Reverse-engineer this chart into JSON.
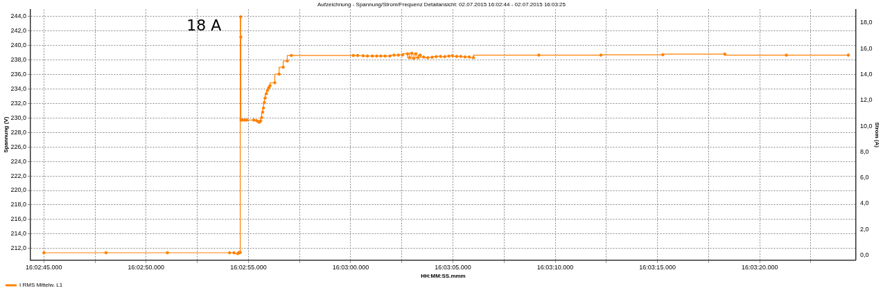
{
  "chart_data": {
    "type": "step",
    "title": "Aufzeichnung - Spannung/Strom/Frequenz Detailansicht: 02.07.2015 16:02:44 - 02.07.2015 16:03:25",
    "xlabel": "HH:MM:SS.mmm",
    "ylabel": "Spannung (V)",
    "y2label": "Strom (A)",
    "x": [
      "2015-07-02T16:02:45.00",
      "2015-07-02T16:02:48.04",
      "2015-07-02T16:02:51.04",
      "2015-07-02T16:02:54.08",
      "2015-07-02T16:02:54.29",
      "2015-07-02T16:02:54.48",
      "2015-07-02T16:02:54.54",
      "2015-07-02T16:02:54.60",
      "2015-07-02T16:02:54.62",
      "2015-07-02T16:02:54.63",
      "2015-07-02T16:02:54.64",
      "2015-07-02T16:02:54.71",
      "2015-07-02T16:02:54.81",
      "2015-07-02T16:02:54.92",
      "2015-07-02T16:02:55.26",
      "2015-07-02T16:02:55.40",
      "2015-07-02T16:02:55.49",
      "2015-07-02T16:02:55.54",
      "2015-07-02T16:02:55.60",
      "2015-07-02T16:02:55.65",
      "2015-07-02T16:02:55.70",
      "2015-07-02T16:02:55.74",
      "2015-07-02T16:02:55.78",
      "2015-07-02T16:02:55.82",
      "2015-07-02T16:02:55.88",
      "2015-07-02T16:02:55.94",
      "2015-07-02T16:02:56.00",
      "2015-07-02T16:02:56.06",
      "2015-07-02T16:02:56.29",
      "2015-07-02T16:02:56.50",
      "2015-07-02T16:02:56.70",
      "2015-07-02T16:02:56.90",
      "2015-07-02T16:02:57.10",
      "2015-07-02T16:03:00.13",
      "2015-07-02T16:03:00.34",
      "2015-07-02T16:03:00.61",
      "2015-07-02T16:03:00.82",
      "2015-07-02T16:03:01.06",
      "2015-07-02T16:03:01.27",
      "2015-07-02T16:03:01.47",
      "2015-07-02T16:03:01.68",
      "2015-07-02T16:03:01.92",
      "2015-07-02T16:03:02.12",
      "2015-07-02T16:03:02.33",
      "2015-07-02T16:03:02.54",
      "2015-07-02T16:03:02.78",
      "2015-07-02T16:03:02.88",
      "2015-07-02T16:03:02.99",
      "2015-07-02T16:03:03.09",
      "2015-07-02T16:03:03.19",
      "2015-07-02T16:03:03.30",
      "2015-07-02T16:03:03.40",
      "2015-07-02T16:03:03.57",
      "2015-07-02T16:03:03.77",
      "2015-07-02T16:03:03.98",
      "2015-07-02T16:03:04.18",
      "2015-07-02T16:03:04.39",
      "2015-07-02T16:03:04.60",
      "2015-07-02T16:03:04.80",
      "2015-07-02T16:03:04.97",
      "2015-07-02T16:03:05.18",
      "2015-07-02T16:03:05.38",
      "2015-07-02T16:03:05.59",
      "2015-07-02T16:03:05.80",
      "2015-07-02T16:03:06.00",
      "2015-07-02T16:03:09.20",
      "2015-07-02T16:03:12.23",
      "2015-07-02T16:03:15.26",
      "2015-07-02T16:03:18.29",
      "2015-07-02T16:03:21.30",
      "2015-07-02T16:03:24.33"
    ],
    "series": [
      {
        "name": "I RMS Mittelw. L1",
        "color": "#ff8000",
        "axis": "y2",
        "values": [
          0.19,
          0.19,
          0.19,
          0.19,
          0.19,
          0.12,
          0.21,
          0.21,
          18.46,
          16.9,
          10.47,
          10.47,
          10.47,
          10.47,
          10.47,
          10.43,
          10.34,
          10.3,
          10.4,
          10.66,
          11.08,
          11.4,
          11.82,
          12.18,
          12.51,
          12.77,
          12.98,
          13.13,
          13.36,
          14.03,
          14.56,
          15.05,
          15.47,
          15.47,
          15.47,
          15.45,
          15.43,
          15.43,
          15.43,
          15.43,
          15.43,
          15.43,
          15.5,
          15.5,
          15.52,
          15.6,
          15.3,
          15.65,
          15.25,
          15.6,
          15.3,
          15.5,
          15.35,
          15.3,
          15.33,
          15.38,
          15.4,
          15.38,
          15.42,
          15.45,
          15.4,
          15.4,
          15.36,
          15.36,
          15.3,
          15.5,
          15.5,
          15.53,
          15.58,
          15.5,
          15.5
        ]
      }
    ],
    "xlim": [
      "2015-07-02T16:02:44.35",
      "2015-07-02T16:03:24.70"
    ],
    "xticks": [
      {
        "value": "2015-07-02T16:02:45",
        "label": "16:02:45.000"
      },
      {
        "value": "2015-07-02T16:02:47.5",
        "label": null
      },
      {
        "value": "2015-07-02T16:02:50",
        "label": "16:02:50.000"
      },
      {
        "value": "2015-07-02T16:02:52.5",
        "label": null
      },
      {
        "value": "2015-07-02T16:02:55",
        "label": "16:02:55.000"
      },
      {
        "value": "2015-07-02T16:02:57.5",
        "label": null
      },
      {
        "value": "2015-07-02T16:03:00",
        "label": "16:03:00.000"
      },
      {
        "value": "2015-07-02T16:03:02.5",
        "label": null
      },
      {
        "value": "2015-07-02T16:03:05",
        "label": "16:03:05.000"
      },
      {
        "value": "2015-07-02T16:03:07.5",
        "label": null
      },
      {
        "value": "2015-07-02T16:03:10",
        "label": "16:03:10.000"
      },
      {
        "value": "2015-07-02T16:03:12.5",
        "label": null
      },
      {
        "value": "2015-07-02T16:03:15",
        "label": "16:03:15.000"
      },
      {
        "value": "2015-07-02T16:03:17.5",
        "label": null
      },
      {
        "value": "2015-07-02T16:03:20",
        "label": "16:03:20.000"
      },
      {
        "value": "2015-07-02T16:03:22.5",
        "label": null
      }
    ],
    "ylim": [
      210.4,
      244.95
    ],
    "yticks": [
      {
        "value": 212,
        "label": "212,0"
      },
      {
        "value": 214,
        "label": "214,0"
      },
      {
        "value": 216,
        "label": "216,0"
      },
      {
        "value": 218,
        "label": "218,0"
      },
      {
        "value": 220,
        "label": "220,0"
      },
      {
        "value": 222,
        "label": "222,0"
      },
      {
        "value": 224,
        "label": "224,0"
      },
      {
        "value": 226,
        "label": "226,0"
      },
      {
        "value": 228,
        "label": "228,0"
      },
      {
        "value": 230,
        "label": "230,0"
      },
      {
        "value": 232,
        "label": "232,0"
      },
      {
        "value": 234,
        "label": "234,0"
      },
      {
        "value": 236,
        "label": "236,0"
      },
      {
        "value": 238,
        "label": "238,0"
      },
      {
        "value": 240,
        "label": "240,0"
      },
      {
        "value": 242,
        "label": "242,0"
      },
      {
        "value": 244,
        "label": "244,0"
      }
    ],
    "y2lim": [
      -0.38,
      19.04
    ],
    "y2ticks": [
      {
        "value": 0,
        "label": "0,0"
      },
      {
        "value": 2,
        "label": "2,0"
      },
      {
        "value": 4,
        "label": "4,0"
      },
      {
        "value": 6,
        "label": "6,0"
      },
      {
        "value": 8,
        "label": "8,0"
      },
      {
        "value": 10,
        "label": "10,0"
      },
      {
        "value": 12,
        "label": "12,0"
      },
      {
        "value": 14,
        "label": "14,0"
      },
      {
        "value": 16,
        "label": "16,0"
      },
      {
        "value": 18,
        "label": "18,0"
      }
    ],
    "annotations": [
      "18 A"
    ],
    "grid": true,
    "legend": "bottom left",
    "marker": "circle",
    "line_style": "solid"
  }
}
